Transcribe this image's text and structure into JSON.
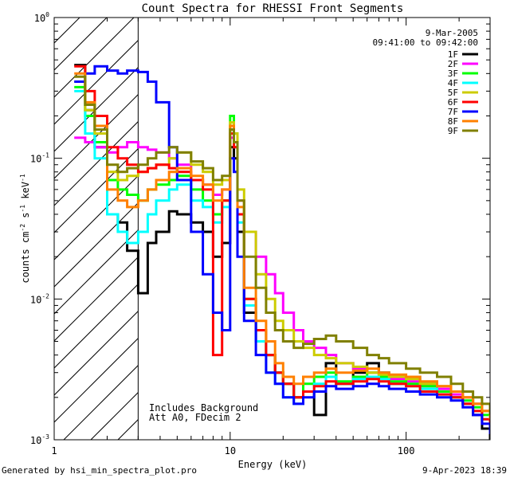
{
  "footer": {
    "generated": "Generated by hsi_min_spectra_plot.pro",
    "date": "9-Apr-2023 18:39"
  },
  "colors": {
    "1F": "#000000",
    "2F": "#ff00ff",
    "3F": "#00ff00",
    "4F": "#00ffff",
    "5F": "#cccc00",
    "6F": "#ff0000",
    "7F": "#0000ff",
    "8F": "#ff8000",
    "9F": "#808000"
  },
  "chart_data": {
    "type": "line",
    "step": true,
    "title": "Count Spectra for RHESSI Front Segments",
    "xlabel": "Energy (keV)",
    "ylabel": {
      "a": "counts cm",
      "b": "-2",
      "c": " s",
      "d": "-1",
      "e": " keV",
      "f": "-1"
    },
    "xscale": "log",
    "yscale": "log",
    "xlim": [
      1.0,
      300.0
    ],
    "ylim": [
      0.001,
      1.0
    ],
    "xticks": [
      {
        "value": 1,
        "label": "1"
      },
      {
        "value": 10,
        "label": "10"
      },
      {
        "value": 100,
        "label": "100"
      }
    ],
    "yticks": [
      {
        "value": 1,
        "base": "10",
        "exp": "0"
      },
      {
        "value": 0.1,
        "base": "10",
        "exp": "-1"
      },
      {
        "value": 0.01,
        "base": "10",
        "exp": "-2"
      },
      {
        "value": 0.001,
        "base": "10",
        "exp": "-3"
      }
    ],
    "date_line": "9-Mar-2005",
    "time_line": "09:41:00 to 09:42:00",
    "annotations": [
      "Includes Background",
      "Att A0, FDecim 2"
    ],
    "hatched_region_max_energy": 3.0,
    "legend_position": "top-right",
    "series": [
      {
        "name": "1F",
        "x": [
          1.3,
          1.5,
          1.7,
          2.0,
          2.3,
          2.6,
          3.0,
          3.4,
          3.8,
          4.5,
          5.0,
          6.0,
          7.0,
          8.0,
          9.0,
          10.0,
          10.5,
          11.0,
          12.0,
          14.0,
          16.0,
          18.0,
          20.0,
          23.0,
          26.0,
          30.0,
          35.0,
          40.0,
          50.0,
          60.0,
          70.0,
          80.0,
          100.0,
          120.0,
          150.0,
          180.0,
          210.0,
          240.0,
          270.0,
          300.0
        ],
        "y": [
          0.46,
          0.22,
          0.12,
          0.04,
          0.035,
          0.022,
          0.011,
          0.025,
          0.03,
          0.042,
          0.04,
          0.035,
          0.03,
          0.02,
          0.025,
          0.12,
          0.1,
          0.03,
          0.008,
          0.005,
          0.004,
          0.003,
          0.0025,
          0.002,
          0.0022,
          0.0015,
          0.0035,
          0.0025,
          0.003,
          0.0035,
          0.003,
          0.0025,
          0.0028,
          0.0025,
          0.0022,
          0.002,
          0.0018,
          0.0015,
          0.0012,
          0.001
        ]
      },
      {
        "name": "2F",
        "x": [
          1.3,
          1.5,
          1.7,
          2.0,
          2.3,
          2.6,
          3.0,
          3.4,
          3.8,
          4.5,
          5.0,
          6.0,
          7.0,
          8.0,
          9.0,
          10.0,
          10.5,
          11.0,
          12.0,
          14.0,
          16.0,
          18.0,
          20.0,
          23.0,
          26.0,
          30.0,
          35.0,
          40.0,
          50.0,
          60.0,
          70.0,
          80.0,
          100.0,
          120.0,
          150.0,
          180.0,
          210.0,
          240.0,
          270.0,
          300.0
        ],
        "y": [
          0.14,
          0.13,
          0.12,
          0.11,
          0.12,
          0.13,
          0.12,
          0.115,
          0.11,
          0.1,
          0.09,
          0.07,
          0.065,
          0.055,
          0.06,
          0.14,
          0.12,
          0.05,
          0.03,
          0.02,
          0.015,
          0.011,
          0.008,
          0.006,
          0.005,
          0.0045,
          0.004,
          0.0035,
          0.0032,
          0.003,
          0.0028,
          0.0027,
          0.0026,
          0.0024,
          0.0023,
          0.0021,
          0.002,
          0.0018,
          0.0016,
          0.0014
        ]
      },
      {
        "name": "3F",
        "x": [
          1.3,
          1.5,
          1.7,
          2.0,
          2.3,
          2.6,
          3.0,
          3.4,
          3.8,
          4.5,
          5.0,
          6.0,
          7.0,
          8.0,
          9.0,
          10.0,
          10.5,
          11.0,
          12.0,
          14.0,
          16.0,
          18.0,
          20.0,
          23.0,
          26.0,
          30.0,
          35.0,
          40.0,
          50.0,
          60.0,
          70.0,
          80.0,
          100.0,
          120.0,
          150.0,
          180.0,
          210.0,
          240.0,
          270.0,
          300.0
        ],
        "y": [
          0.32,
          0.2,
          0.13,
          0.07,
          0.06,
          0.055,
          0.05,
          0.06,
          0.065,
          0.07,
          0.075,
          0.06,
          0.05,
          0.04,
          0.05,
          0.2,
          0.15,
          0.04,
          0.01,
          0.006,
          0.004,
          0.003,
          0.0025,
          0.002,
          0.0025,
          0.0028,
          0.003,
          0.0026,
          0.0028,
          0.003,
          0.0028,
          0.0026,
          0.0025,
          0.0024,
          0.0022,
          0.002,
          0.0019,
          0.0017,
          0.0015,
          0.0013
        ]
      },
      {
        "name": "4F",
        "x": [
          1.3,
          1.5,
          1.7,
          2.0,
          2.3,
          2.6,
          3.0,
          3.4,
          3.8,
          4.5,
          5.0,
          6.0,
          7.0,
          8.0,
          9.0,
          10.0,
          10.5,
          11.0,
          12.0,
          14.0,
          16.0,
          18.0,
          20.0,
          23.0,
          26.0,
          30.0,
          35.0,
          40.0,
          50.0,
          60.0,
          70.0,
          80.0,
          100.0,
          120.0,
          150.0,
          180.0,
          210.0,
          240.0,
          270.0,
          300.0
        ],
        "y": [
          0.3,
          0.15,
          0.1,
          0.04,
          0.03,
          0.025,
          0.03,
          0.04,
          0.05,
          0.06,
          0.065,
          0.05,
          0.045,
          0.035,
          0.045,
          0.16,
          0.12,
          0.035,
          0.009,
          0.005,
          0.003,
          0.0025,
          0.002,
          0.0018,
          0.0022,
          0.0025,
          0.0028,
          0.0025,
          0.0027,
          0.0028,
          0.0027,
          0.0025,
          0.0024,
          0.0023,
          0.0021,
          0.002,
          0.0018,
          0.0016,
          0.0014,
          0.0012
        ]
      },
      {
        "name": "5F",
        "x": [
          1.3,
          1.5,
          1.7,
          2.0,
          2.3,
          2.6,
          3.0,
          3.4,
          3.8,
          4.5,
          5.0,
          6.0,
          7.0,
          8.0,
          9.0,
          10.0,
          10.5,
          11.0,
          12.0,
          14.0,
          16.0,
          18.0,
          20.0,
          23.0,
          26.0,
          30.0,
          35.0,
          40.0,
          50.0,
          60.0,
          70.0,
          80.0,
          100.0,
          120.0,
          150.0,
          180.0,
          210.0,
          240.0,
          270.0,
          300.0
        ],
        "y": [
          0.35,
          0.22,
          0.15,
          0.08,
          0.07,
          0.075,
          0.08,
          0.085,
          0.09,
          0.1,
          0.11,
          0.09,
          0.08,
          0.065,
          0.07,
          0.18,
          0.15,
          0.06,
          0.03,
          0.015,
          0.01,
          0.007,
          0.006,
          0.005,
          0.0045,
          0.004,
          0.0038,
          0.0035,
          0.0033,
          0.003,
          0.0029,
          0.0028,
          0.0027,
          0.0025,
          0.0024,
          0.0022,
          0.002,
          0.0018,
          0.0016,
          0.0014
        ]
      },
      {
        "name": "6F",
        "x": [
          1.3,
          1.5,
          1.7,
          2.0,
          2.3,
          2.6,
          3.0,
          3.4,
          3.8,
          4.5,
          5.0,
          6.0,
          7.0,
          8.0,
          9.0,
          10.0,
          10.5,
          11.0,
          12.0,
          14.0,
          16.0,
          18.0,
          20.0,
          23.0,
          26.0,
          30.0,
          35.0,
          40.0,
          50.0,
          60.0,
          70.0,
          80.0,
          100.0,
          120.0,
          150.0,
          180.0,
          210.0,
          240.0,
          270.0,
          300.0
        ],
        "y": [
          0.45,
          0.3,
          0.2,
          0.12,
          0.1,
          0.09,
          0.08,
          0.085,
          0.09,
          0.085,
          0.08,
          0.07,
          0.06,
          0.004,
          0.05,
          0.15,
          0.12,
          0.04,
          0.01,
          0.006,
          0.004,
          0.003,
          0.0025,
          0.002,
          0.0022,
          0.0024,
          0.0026,
          0.0025,
          0.0026,
          0.0027,
          0.0026,
          0.0025,
          0.0024,
          0.0022,
          0.0021,
          0.002,
          0.0018,
          0.0016,
          0.0014,
          0.0012
        ]
      },
      {
        "name": "7F",
        "x": [
          1.3,
          1.5,
          1.7,
          2.0,
          2.3,
          2.6,
          3.0,
          3.4,
          3.8,
          4.5,
          5.0,
          6.0,
          7.0,
          8.0,
          9.0,
          10.0,
          10.5,
          11.0,
          12.0,
          14.0,
          16.0,
          18.0,
          20.0,
          23.0,
          26.0,
          30.0,
          35.0,
          40.0,
          50.0,
          60.0,
          70.0,
          80.0,
          100.0,
          120.0,
          150.0,
          180.0,
          210.0,
          240.0,
          270.0,
          300.0
        ],
        "y": [
          0.35,
          0.4,
          0.45,
          0.42,
          0.4,
          0.42,
          0.41,
          0.35,
          0.25,
          0.12,
          0.07,
          0.03,
          0.015,
          0.008,
          0.006,
          0.1,
          0.08,
          0.02,
          0.007,
          0.004,
          0.003,
          0.0025,
          0.002,
          0.0018,
          0.002,
          0.0022,
          0.0024,
          0.0023,
          0.0024,
          0.0025,
          0.0024,
          0.0023,
          0.0022,
          0.0021,
          0.002,
          0.0019,
          0.0017,
          0.0015,
          0.0013,
          0.0011
        ]
      },
      {
        "name": "8F",
        "x": [
          1.3,
          1.5,
          1.7,
          2.0,
          2.3,
          2.6,
          3.0,
          3.4,
          3.8,
          4.5,
          5.0,
          6.0,
          7.0,
          8.0,
          9.0,
          10.0,
          10.5,
          11.0,
          12.0,
          14.0,
          16.0,
          18.0,
          20.0,
          23.0,
          26.0,
          30.0,
          35.0,
          40.0,
          50.0,
          60.0,
          70.0,
          80.0,
          100.0,
          120.0,
          150.0,
          180.0,
          210.0,
          240.0,
          270.0,
          300.0
        ],
        "y": [
          0.4,
          0.25,
          0.17,
          0.06,
          0.05,
          0.045,
          0.05,
          0.06,
          0.07,
          0.08,
          0.085,
          0.075,
          0.065,
          0.05,
          0.06,
          0.17,
          0.13,
          0.045,
          0.012,
          0.007,
          0.005,
          0.0035,
          0.0028,
          0.0025,
          0.0028,
          0.003,
          0.0032,
          0.003,
          0.0031,
          0.0032,
          0.003,
          0.0029,
          0.0028,
          0.0026,
          0.0024,
          0.0022,
          0.002,
          0.0018,
          0.0016,
          0.0014
        ]
      },
      {
        "name": "9F",
        "x": [
          1.3,
          1.5,
          1.7,
          2.0,
          2.3,
          2.6,
          3.0,
          3.4,
          3.8,
          4.5,
          5.0,
          6.0,
          7.0,
          8.0,
          9.0,
          10.0,
          10.5,
          11.0,
          12.0,
          14.0,
          16.0,
          18.0,
          20.0,
          23.0,
          26.0,
          30.0,
          35.0,
          40.0,
          50.0,
          60.0,
          70.0,
          80.0,
          100.0,
          120.0,
          150.0,
          180.0,
          210.0,
          240.0,
          270.0,
          300.0
        ],
        "y": [
          0.38,
          0.24,
          0.16,
          0.09,
          0.08,
          0.085,
          0.09,
          0.1,
          0.11,
          0.12,
          0.11,
          0.095,
          0.085,
          0.07,
          0.075,
          0.16,
          0.13,
          0.05,
          0.02,
          0.012,
          0.008,
          0.006,
          0.005,
          0.0045,
          0.0048,
          0.0052,
          0.0055,
          0.005,
          0.0045,
          0.004,
          0.0038,
          0.0035,
          0.0032,
          0.003,
          0.0028,
          0.0025,
          0.0022,
          0.002,
          0.0018,
          0.0015
        ]
      }
    ]
  }
}
